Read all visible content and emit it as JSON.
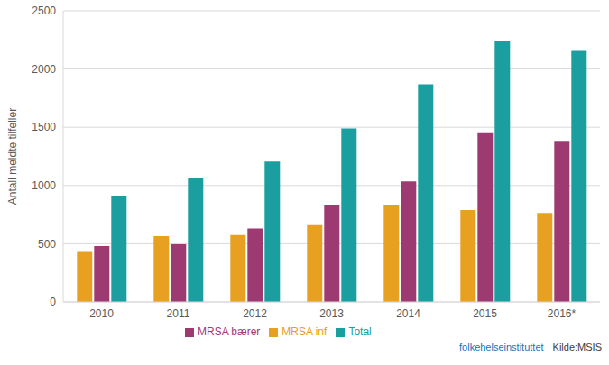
{
  "chart_data": {
    "type": "bar",
    "y_label": "Antall meldte tilfeller",
    "categories": [
      "2010",
      "2011",
      "2012",
      "2013",
      "2014",
      "2015",
      "2016*"
    ],
    "series": [
      {
        "name": "MRSA inf",
        "color": "#E8A020",
        "values": [
          430,
          565,
          575,
          660,
          835,
          790,
          765
        ]
      },
      {
        "name": "MRSA bærer",
        "color": "#9E3A72",
        "values": [
          480,
          495,
          630,
          830,
          1035,
          1450,
          1375
        ]
      },
      {
        "name": "Total",
        "color": "#1A9EA0",
        "values": [
          910,
          1060,
          1205,
          1490,
          1870,
          2240,
          2155
        ]
      }
    ],
    "ylim": [
      0,
      2500
    ],
    "yticks": [
      0,
      500,
      1000,
      1500,
      2000,
      2500
    ],
    "grid": true,
    "legend": "bottom",
    "annotations": [
      "folkehelseinstituttet",
      "Kilde:MSIS"
    ]
  }
}
